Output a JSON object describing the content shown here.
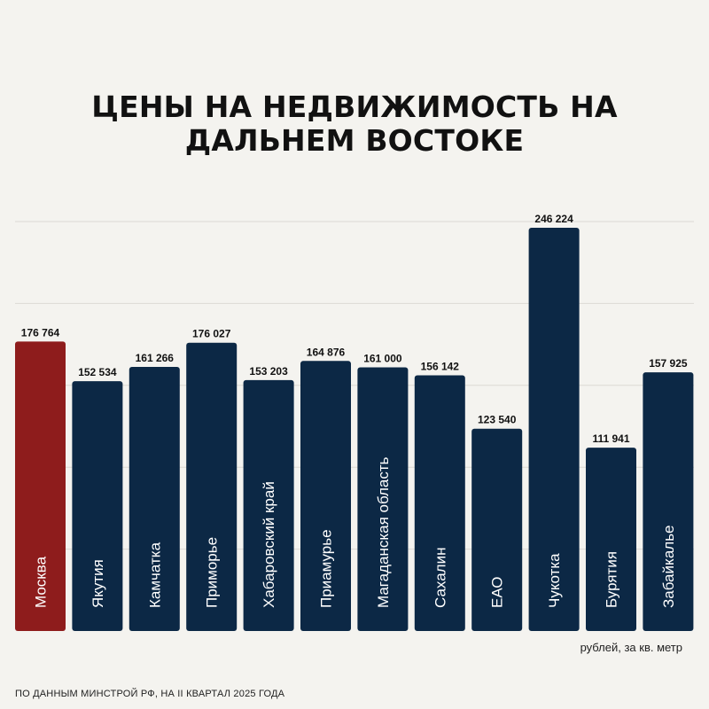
{
  "chart_data": {
    "type": "bar",
    "title": "ЦЕНЫ НА НЕДВИЖИМОСТЬ НА ДАЛЬНЕМ ВОСТОКЕ",
    "title_lines": [
      "ЦЕНЫ НА НЕДВИЖИМОСТЬ НА",
      "ДАЛЬНЕМ ВОСТОКЕ"
    ],
    "categories": [
      "Москва",
      "Якутия",
      "Камчатка",
      "Приморье",
      "Хабаровский край",
      "Приамурье",
      "Магаданская область",
      "Сахалин",
      "ЕАО",
      "Чукотка",
      "Бурятия",
      "Забайкалье"
    ],
    "values": [
      176764,
      152534,
      161266,
      176027,
      153203,
      164876,
      161000,
      156142,
      123540,
      246224,
      111941,
      157925
    ],
    "value_labels": [
      "176 764",
      "152 534",
      "161 266",
      "176 027",
      "153 203",
      "164 876",
      "161 000",
      "156 142",
      "123 540",
      "246 224",
      "111 941",
      "157 925"
    ],
    "highlight_index": 0,
    "ylim": [
      0,
      250000
    ],
    "grid": true,
    "unit_label": "рублей, за кв. метр",
    "source": "ПО ДАННЫМ МИНСТРОЙ РФ, НА II КВАРТАЛ 2025 ГОДА",
    "colors": {
      "bar": "#0c2845",
      "highlight": "#8e1c1c",
      "grid": "#dcdad4",
      "text": "#111111"
    }
  }
}
